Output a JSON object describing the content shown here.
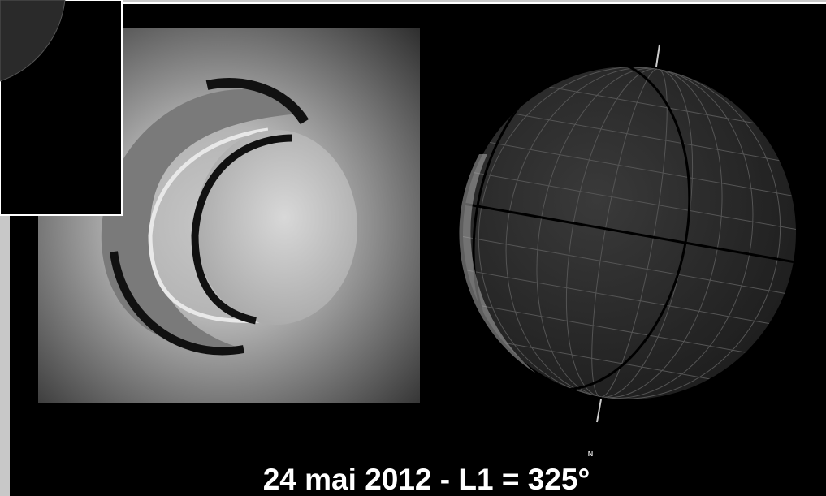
{
  "caption": "24 mai 2012 - L1 = 325°",
  "north_label": "N"
}
